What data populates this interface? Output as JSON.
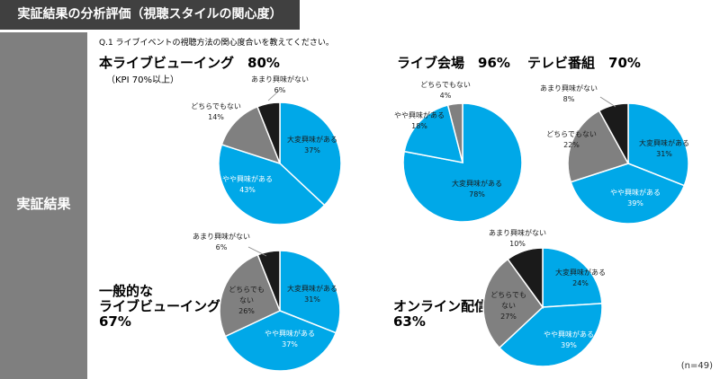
{
  "header": {
    "title": "実証結果の分析評価（視聴スタイルの関心度）"
  },
  "side": {
    "label": "実証結果"
  },
  "question": "Q.1 ライブイベントの視聴方法の関心度合いを教えてください。",
  "sample": "(n=49)",
  "colors": {
    "very_interested": "#00a8e8",
    "somewhat_interested": "#00a8e8",
    "neutral": "#808080",
    "not_interested": "#1a1a1a",
    "header_bg": "#404040",
    "side_bg": "#7f7f7f"
  },
  "titles": {
    "main_lv": "本ライブビューイング　80%",
    "kpi": "（KPI 70%以上）",
    "live_venue": "ライブ会場　96%",
    "tv": "テレビ番組　70%",
    "general_lv_1": "一般的な",
    "general_lv_2": "ライブビューイング",
    "general_lv_3": "67%",
    "online_1": "オンライン配信",
    "online_2": "63%"
  },
  "chart_data": [
    {
      "type": "pie",
      "title": "本ライブビューイング　80%",
      "slices": [
        {
          "label": "大変興味がある",
          "value": 37,
          "color": "#00a8e8"
        },
        {
          "label": "やや興味がある",
          "value": 43,
          "color": "#00a8e8"
        },
        {
          "label": "どちらでもない",
          "value": 14,
          "color": "#808080"
        },
        {
          "label": "あまり興味がない",
          "value": 6,
          "color": "#1a1a1a"
        }
      ]
    },
    {
      "type": "pie",
      "title": "ライブ会場　96%",
      "slices": [
        {
          "label": "大変興味がある",
          "value": 78,
          "color": "#00a8e8"
        },
        {
          "label": "やや興味がある",
          "value": 18,
          "color": "#00a8e8"
        },
        {
          "label": "どちらでもない",
          "value": 4,
          "color": "#808080"
        }
      ]
    },
    {
      "type": "pie",
      "title": "テレビ番組　70%",
      "slices": [
        {
          "label": "大変興味がある",
          "value": 31,
          "color": "#00a8e8"
        },
        {
          "label": "やや興味がある",
          "value": 39,
          "color": "#00a8e8"
        },
        {
          "label": "どちらでもない",
          "value": 22,
          "color": "#808080"
        },
        {
          "label": "あまり興味がない",
          "value": 8,
          "color": "#1a1a1a"
        }
      ]
    },
    {
      "type": "pie",
      "title": "一般的なライブビューイング 67%",
      "slices": [
        {
          "label": "大変興味がある",
          "value": 31,
          "color": "#00a8e8"
        },
        {
          "label": "やや興味がある",
          "value": 37,
          "color": "#00a8e8"
        },
        {
          "label": "どちらでもない",
          "value": 26,
          "color": "#808080"
        },
        {
          "label": "あまり興味がない",
          "value": 6,
          "color": "#1a1a1a"
        }
      ]
    },
    {
      "type": "pie",
      "title": "オンライン配信 63%",
      "slices": [
        {
          "label": "大変興味がある",
          "value": 24,
          "color": "#00a8e8"
        },
        {
          "label": "やや興味がある",
          "value": 39,
          "color": "#00a8e8"
        },
        {
          "label": "どちらでもない",
          "value": 27,
          "color": "#808080"
        },
        {
          "label": "あまり興味がない",
          "value": 10,
          "color": "#1a1a1a"
        }
      ]
    }
  ]
}
